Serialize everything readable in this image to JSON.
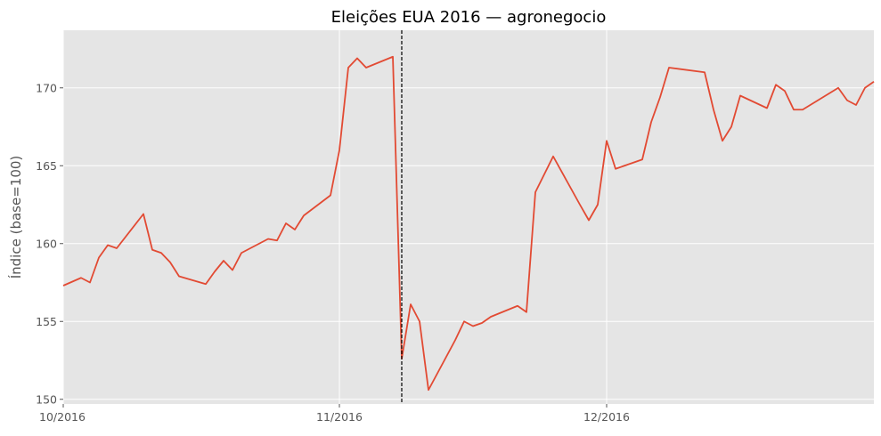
{
  "chart_data": {
    "type": "line",
    "title": "Eleições EUA 2016 — agronegocio",
    "xlabel": "",
    "ylabel": "Índice (base=100)",
    "xlim": [
      "2016-10-01",
      "2016-12-31"
    ],
    "ylim": [
      149.7,
      173.7
    ],
    "yticks": [
      150,
      155,
      160,
      165,
      170
    ],
    "xticks": [
      {
        "date": "2016-10-01",
        "label": "10/2016"
      },
      {
        "date": "2016-11-01",
        "label": "11/2016"
      },
      {
        "date": "2016-12-01",
        "label": "12/2016"
      }
    ],
    "event_line": {
      "date": "2016-11-08",
      "style": "dashed",
      "color": "#000000"
    },
    "grid": true,
    "legend": "none",
    "colors": {
      "background": "#e5e5e5",
      "grid": "#ffffff",
      "line": "#e24a33"
    },
    "series": [
      {
        "x": [
          "2016-10-01",
          "2016-10-03",
          "2016-10-04",
          "2016-10-05",
          "2016-10-06",
          "2016-10-07",
          "2016-10-10",
          "2016-10-11",
          "2016-10-12",
          "2016-10-13",
          "2016-10-14",
          "2016-10-17",
          "2016-10-18",
          "2016-10-19",
          "2016-10-20",
          "2016-10-21",
          "2016-10-24",
          "2016-10-25",
          "2016-10-26",
          "2016-10-27",
          "2016-10-28",
          "2016-10-31",
          "2016-11-01",
          "2016-11-02",
          "2016-11-03",
          "2016-11-04",
          "2016-11-07",
          "2016-11-08",
          "2016-11-09",
          "2016-11-10",
          "2016-11-11",
          "2016-11-14",
          "2016-11-15",
          "2016-11-16",
          "2016-11-17",
          "2016-11-18",
          "2016-11-21",
          "2016-11-22",
          "2016-11-23",
          "2016-11-25",
          "2016-11-28",
          "2016-11-29",
          "2016-11-30",
          "2016-12-01",
          "2016-12-02",
          "2016-12-05",
          "2016-12-06",
          "2016-12-07",
          "2016-12-08",
          "2016-12-12",
          "2016-12-13",
          "2016-12-14",
          "2016-12-15",
          "2016-12-16",
          "2016-12-19",
          "2016-12-20",
          "2016-12-21",
          "2016-12-22",
          "2016-12-23",
          "2016-12-27",
          "2016-12-28",
          "2016-12-29",
          "2016-12-30",
          "2016-12-31"
        ],
        "values": [
          157.3,
          157.8,
          157.5,
          159.1,
          159.9,
          159.7,
          161.9,
          159.6,
          159.4,
          158.8,
          157.9,
          157.4,
          158.2,
          158.9,
          158.3,
          159.4,
          160.3,
          160.2,
          161.3,
          160.9,
          161.8,
          163.1,
          166.0,
          171.3,
          171.9,
          171.3,
          172.0,
          152.6,
          156.1,
          155.0,
          150.6,
          153.8,
          155.0,
          154.7,
          154.9,
          155.3,
          156.0,
          155.6,
          163.3,
          165.6,
          162.5,
          161.5,
          162.5,
          166.6,
          164.8,
          165.4,
          167.8,
          169.4,
          171.3,
          171.0,
          168.6,
          166.6,
          167.5,
          169.5,
          168.7,
          170.2,
          169.8,
          168.6,
          168.6,
          170.0,
          169.2,
          168.9,
          170.0,
          170.4
        ]
      }
    ]
  }
}
